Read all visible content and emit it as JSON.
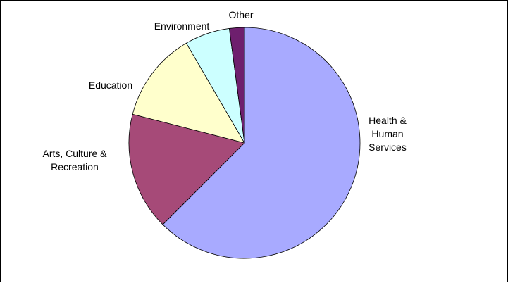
{
  "chart_data": {
    "type": "pie",
    "title": "",
    "start_angle_deg": 0,
    "direction": "clockwise",
    "legend": "none",
    "slices": [
      {
        "label": "Health & Human Services",
        "label_lines": [
          "Health &",
          "Human",
          "Services"
        ],
        "value": 62.5,
        "color": "#A8AAFF"
      },
      {
        "label": "Arts, Culture & Recreation",
        "label_lines": [
          "Arts, Culture &",
          "Recreation"
        ],
        "value": 16.5,
        "color": "#A64A78"
      },
      {
        "label": "Education",
        "label_lines": [
          "Education"
        ],
        "value": 12.6,
        "color": "#FFFFCC"
      },
      {
        "label": "Environment",
        "label_lines": [
          "Environment"
        ],
        "value": 6.3,
        "color": "#CCFFFF"
      },
      {
        "label": "Other",
        "label_lines": [
          "Other"
        ],
        "value": 2.1,
        "color": "#6E1F6E"
      }
    ]
  }
}
